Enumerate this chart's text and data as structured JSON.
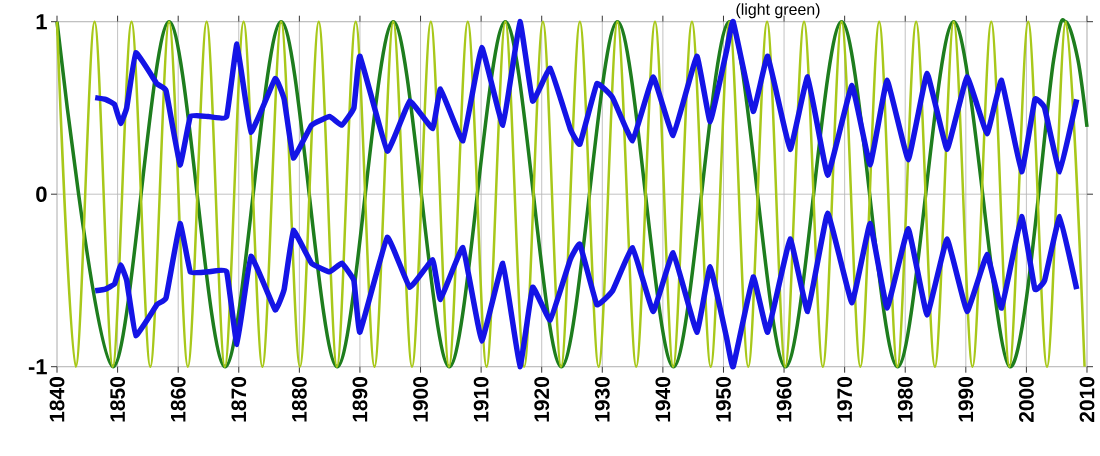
{
  "chart_data": {
    "type": "line",
    "annotations": [
      "(light green)"
    ],
    "xlim": [
      1840,
      2010
    ],
    "xticks": [
      1840,
      1850,
      1860,
      1870,
      1880,
      1890,
      1900,
      1910,
      1920,
      1930,
      1940,
      1950,
      1960,
      1970,
      1980,
      1990,
      2000,
      2010
    ],
    "ylim": [
      -1,
      1
    ],
    "yticks": [
      -1,
      0,
      1
    ],
    "grid": true,
    "line_style": "solid",
    "series": [
      {
        "color": "#1e7d1e",
        "x": [
          1840,
          1849.25,
          1858.5,
          1867.75,
          1877,
          1886.25,
          1895.5,
          1904.75,
          1914,
          1923.25,
          1932.5,
          1941.75,
          1951,
          1960.25,
          1969.5,
          1978.75,
          1988,
          1997.25,
          2004.5,
          2006.5,
          2008.5,
          2010
        ],
        "values": [
          1,
          -1,
          1,
          -1,
          1,
          -1,
          1,
          -1,
          1,
          -1,
          1,
          -1,
          1,
          -1,
          1,
          -1,
          1,
          -1,
          0.78,
          1,
          0.78,
          0.39
        ]
      },
      {
        "color": "#a8c81a",
        "x": [
          1840.0,
          1843.1,
          1846.2,
          1849.2,
          1852.3,
          1855.4,
          1858.5,
          1861.6,
          1864.7,
          1867.7,
          1870.8,
          1873.9,
          1877.0,
          1880.1,
          1883.2,
          1886.2,
          1889.3,
          1892.4,
          1895.5,
          1898.6,
          1901.7,
          1904.7,
          1907.8,
          1910.9,
          1914.0,
          1917.1,
          1920.2,
          1923.2,
          1926.3,
          1929.4,
          1932.5,
          1935.6,
          1938.7,
          1941.7,
          1944.8,
          1947.9,
          1951.0,
          1954.1,
          1957.2,
          1960.2,
          1963.3,
          1966.4,
          1969.5,
          1972.6,
          1975.7,
          1978.7,
          1981.8,
          1984.9,
          1988.0,
          1991.1,
          1994.2,
          1997.2,
          2000.3,
          2003.4,
          2006.5,
          2009.6
        ],
        "values": [
          1,
          -1,
          1,
          -1,
          1,
          -1,
          1,
          -1,
          1,
          -1,
          1,
          -1,
          1,
          -1,
          1,
          -1,
          1,
          -1,
          1,
          -1,
          1,
          -1,
          1,
          -1,
          1,
          -1,
          1,
          -1,
          1,
          -1,
          1,
          -1,
          1,
          -1,
          1,
          -1,
          1,
          -1,
          1,
          -1,
          1,
          -1,
          1,
          -1,
          1,
          -1,
          1,
          -1,
          1,
          -1,
          1,
          -1,
          1,
          -1,
          1,
          -1
        ]
      },
      {
        "color": "#1414e6",
        "x": [
          1846.3,
          1848,
          1849.5,
          1850.5,
          1851.5,
          1853,
          1856.5,
          1858,
          1860.3,
          1862,
          1865,
          1868,
          1869.7,
          1872,
          1876,
          1877.5,
          1879,
          1882,
          1885,
          1887,
          1889,
          1890,
          1894.5,
          1898.2,
          1902,
          1903.3,
          1907,
          1910.1,
          1913.6,
          1916.4,
          1918.5,
          1921.4,
          1924.7,
          1926.3,
          1929.1,
          1931.7,
          1935,
          1938.4,
          1941.7,
          1945.6,
          1947.8,
          1950.5,
          1951.6,
          1954.9,
          1957.3,
          1961,
          1963.9,
          1967.2,
          1971.2,
          1974.2,
          1977,
          1980.5,
          1983.6,
          1986.9,
          1990.2,
          1993.5,
          1995.9,
          1999.2,
          2001.4,
          2003,
          2005.5,
          2008.3
        ],
        "values": [
          0.56,
          0.55,
          0.52,
          0.41,
          0.5,
          0.82,
          0.64,
          0.6,
          0.17,
          0.45,
          0.45,
          0.45,
          0.87,
          0.36,
          0.67,
          0.55,
          0.21,
          0.4,
          0.45,
          0.4,
          0.5,
          0.8,
          0.25,
          0.54,
          0.38,
          0.61,
          0.31,
          0.85,
          0.4,
          1.0,
          0.54,
          0.73,
          0.38,
          0.29,
          0.64,
          0.56,
          0.31,
          0.68,
          0.34,
          0.8,
          0.42,
          0.83,
          1.0,
          0.48,
          0.8,
          0.26,
          0.68,
          0.11,
          0.63,
          0.17,
          0.66,
          0.2,
          0.7,
          0.26,
          0.68,
          0.35,
          0.66,
          0.13,
          0.55,
          0.5,
          0.13,
          0.55
        ]
      },
      {
        "color": "#1414e6",
        "x": [
          1846.3,
          1848,
          1849.5,
          1850.5,
          1851.5,
          1853,
          1856.5,
          1858,
          1860.3,
          1862,
          1865,
          1868,
          1869.7,
          1872,
          1876,
          1877.5,
          1879,
          1882,
          1885,
          1887,
          1889,
          1890,
          1894.5,
          1898.2,
          1902,
          1903.3,
          1907,
          1910.1,
          1913.6,
          1916.4,
          1918.5,
          1921.4,
          1924.7,
          1926.3,
          1929.1,
          1931.7,
          1935,
          1938.4,
          1941.7,
          1945.6,
          1947.8,
          1950.5,
          1951.6,
          1954.9,
          1957.3,
          1961,
          1963.9,
          1967.2,
          1971.2,
          1974.2,
          1977,
          1980.5,
          1983.6,
          1986.9,
          1990.2,
          1993.5,
          1995.9,
          1999.2,
          2001.4,
          2003,
          2005.5,
          2008.3
        ],
        "values": [
          -0.56,
          -0.55,
          -0.52,
          -0.41,
          -0.5,
          -0.82,
          -0.64,
          -0.6,
          -0.17,
          -0.45,
          -0.45,
          -0.45,
          -0.87,
          -0.36,
          -0.67,
          -0.55,
          -0.21,
          -0.4,
          -0.45,
          -0.4,
          -0.5,
          -0.8,
          -0.25,
          -0.54,
          -0.38,
          -0.61,
          -0.31,
          -0.85,
          -0.4,
          -1.0,
          -0.54,
          -0.73,
          -0.38,
          -0.29,
          -0.64,
          -0.56,
          -0.31,
          -0.68,
          -0.34,
          -0.8,
          -0.42,
          -0.83,
          -1.0,
          -0.48,
          -0.8,
          -0.26,
          -0.68,
          -0.11,
          -0.63,
          -0.17,
          -0.66,
          -0.2,
          -0.7,
          -0.26,
          -0.68,
          -0.35,
          -0.66,
          -0.13,
          -0.55,
          -0.5,
          -0.13,
          -0.55
        ]
      }
    ]
  }
}
